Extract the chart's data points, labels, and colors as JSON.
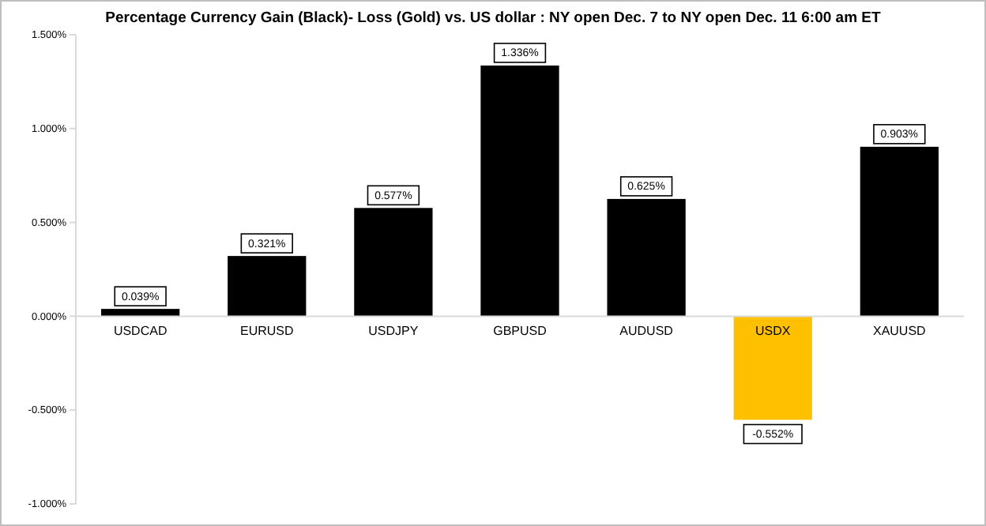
{
  "chart_data": {
    "type": "bar",
    "title": "Percentage Currency  Gain (Black)- Loss (Gold)  vs. US dollar :  NY open Dec. 7 to NY open Dec. 11 6:00 am ET",
    "categories": [
      "USDCAD",
      "EURUSD",
      "USDJPY",
      "GBPUSD",
      "AUDUSD",
      "USDX",
      "XAUUSD"
    ],
    "values": [
      0.039,
      0.321,
      0.577,
      1.336,
      0.625,
      -0.552,
      0.903
    ],
    "colors": [
      "#000000",
      "#000000",
      "#000000",
      "#000000",
      "#000000",
      "#ffc000",
      "#000000"
    ],
    "value_labels": [
      "0.039%",
      "0.321%",
      "0.577%",
      "1.336%",
      "0.625%",
      "-0.552%",
      "0.903%"
    ],
    "ylim": [
      -1,
      1.5
    ],
    "yticks": [
      {
        "value": -1,
        "label": "-1.000%"
      },
      {
        "value": -0.5,
        "label": "-0.500%"
      },
      {
        "value": 0,
        "label": "0.000%"
      },
      {
        "value": 0.5,
        "label": "0.500%"
      },
      {
        "value": 1,
        "label": "1.000%"
      },
      {
        "value": 1.5,
        "label": "1.500%"
      }
    ],
    "grid": false
  }
}
